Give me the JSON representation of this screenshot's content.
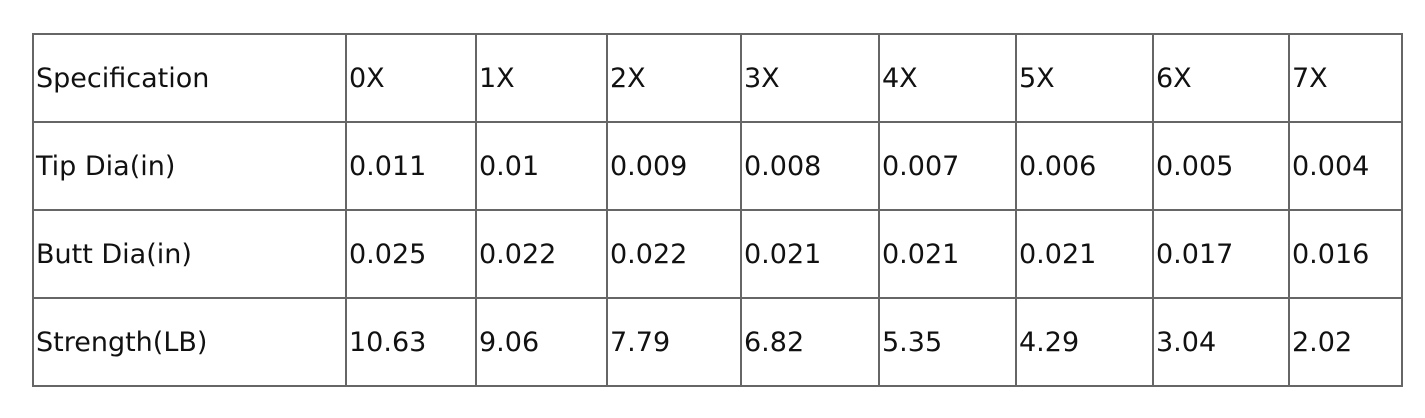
{
  "table": {
    "header": [
      "Specification",
      "0X",
      "1X",
      "2X",
      "3X",
      "4X",
      "5X",
      "6X",
      "7X"
    ],
    "rows": [
      [
        "Tip Dia(in)",
        "0.011",
        "0.01",
        "0.009",
        "0.008",
        "0.007",
        "0.006",
        "0.005",
        "0.004"
      ],
      [
        "Butt Dia(in)",
        "0.025",
        "0.022",
        "0.022",
        "0.021",
        "0.021",
        "0.021",
        "0.017",
        "0.016"
      ],
      [
        "Strength(LB)",
        "10.63",
        "9.06",
        "7.79",
        "6.82",
        "5.35",
        "4.29",
        "3.04",
        "2.02"
      ]
    ]
  }
}
